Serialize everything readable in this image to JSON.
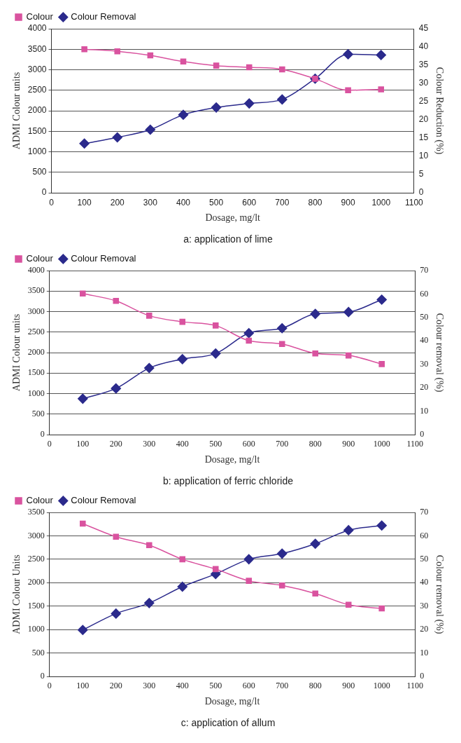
{
  "chart_data": [
    {
      "type": "line",
      "title": "a: application of lime",
      "xlabel": "Dosage, mg/lt",
      "ylabel": "ADMI Colour units",
      "y2label": "Colour Reduction (%)",
      "x": [
        100,
        200,
        300,
        400,
        500,
        600,
        700,
        800,
        900,
        1000
      ],
      "series": [
        {
          "name": "Colour",
          "color": "#d9539f",
          "marker": "square",
          "values": [
            3500,
            3450,
            3350,
            3200,
            3100,
            3060,
            3010,
            2780,
            2500,
            2520
          ]
        },
        {
          "name": "Colour Removal",
          "color": "#2b2a8c",
          "marker": "diamond",
          "axis": "y2",
          "values": [
            13.5,
            15.2,
            17.3,
            21.4,
            23.4,
            24.5,
            25.6,
            31.3,
            38,
            37.8
          ]
        }
      ],
      "xlim": [
        0,
        1100
      ],
      "xticks": [
        0,
        100,
        200,
        300,
        400,
        500,
        600,
        700,
        800,
        900,
        1000,
        1100
      ],
      "ylim": [
        0,
        4000
      ],
      "yticks": [
        0,
        500,
        1000,
        1500,
        2000,
        2500,
        3000,
        3500,
        4000
      ],
      "y2lim": [
        0,
        45
      ],
      "y2ticks": [
        0,
        5,
        10,
        15,
        20,
        25,
        30,
        35,
        40,
        45
      ],
      "grid": "y",
      "legend": "top left"
    },
    {
      "type": "line",
      "title": "b: application of ferric chloride",
      "xlabel": "Dosage, mg/lt",
      "ylabel": "ADMI Colour units",
      "y2label": "Colour removal (%)",
      "x": [
        100,
        200,
        300,
        400,
        500,
        600,
        700,
        800,
        900,
        1000
      ],
      "series": [
        {
          "name": "Colour",
          "color": "#d9539f",
          "marker": "square",
          "values": [
            3440,
            3260,
            2900,
            2750,
            2660,
            2290,
            2210,
            1980,
            1930,
            1720
          ]
        },
        {
          "name": "Colour Removal",
          "color": "#2b2a8c",
          "marker": "diamond",
          "axis": "y2",
          "values": [
            15.3,
            19.7,
            28.4,
            32.2,
            34.6,
            43.3,
            45.4,
            51.5,
            52.3,
            57.6
          ]
        }
      ],
      "xlim": [
        0,
        1100
      ],
      "xticks": [
        0,
        100,
        200,
        300,
        400,
        500,
        600,
        700,
        800,
        900,
        1000,
        1100
      ],
      "ylim": [
        0,
        4000
      ],
      "yticks": [
        0,
        500,
        1000,
        1500,
        2000,
        2500,
        3000,
        3500,
        4000
      ],
      "y2lim": [
        0,
        70
      ],
      "y2ticks": [
        0,
        10,
        20,
        30,
        40,
        50,
        60,
        70
      ],
      "grid": "y",
      "legend": "top left"
    },
    {
      "type": "line",
      "title": "c: application of allum",
      "xlabel": "Dosage, mg/lt",
      "ylabel": "ADMI Colour Units",
      "y2label": "Colour removal (%)",
      "x": [
        100,
        200,
        300,
        400,
        500,
        600,
        700,
        800,
        900,
        1000
      ],
      "series": [
        {
          "name": "Colour",
          "color": "#d9539f",
          "marker": "square",
          "values": [
            3260,
            2980,
            2800,
            2500,
            2290,
            2040,
            1940,
            1770,
            1530,
            1450
          ]
        },
        {
          "name": "Colour Removal",
          "color": "#2b2a8c",
          "marker": "diamond",
          "axis": "y2",
          "values": [
            19.8,
            26.8,
            31.3,
            38.3,
            43.7,
            50,
            52.4,
            56.6,
            62.4,
            64.4
          ]
        }
      ],
      "xlim": [
        0,
        1100
      ],
      "xticks": [
        0,
        100,
        200,
        300,
        400,
        500,
        600,
        700,
        800,
        900,
        1000,
        1100
      ],
      "ylim": [
        0,
        3500
      ],
      "yticks": [
        0,
        500,
        1000,
        1500,
        2000,
        2500,
        3000,
        3500
      ],
      "y2lim": [
        0,
        70
      ],
      "y2ticks": [
        0,
        10,
        20,
        30,
        40,
        50,
        60,
        70
      ],
      "grid": "y",
      "legend": "top left"
    }
  ]
}
